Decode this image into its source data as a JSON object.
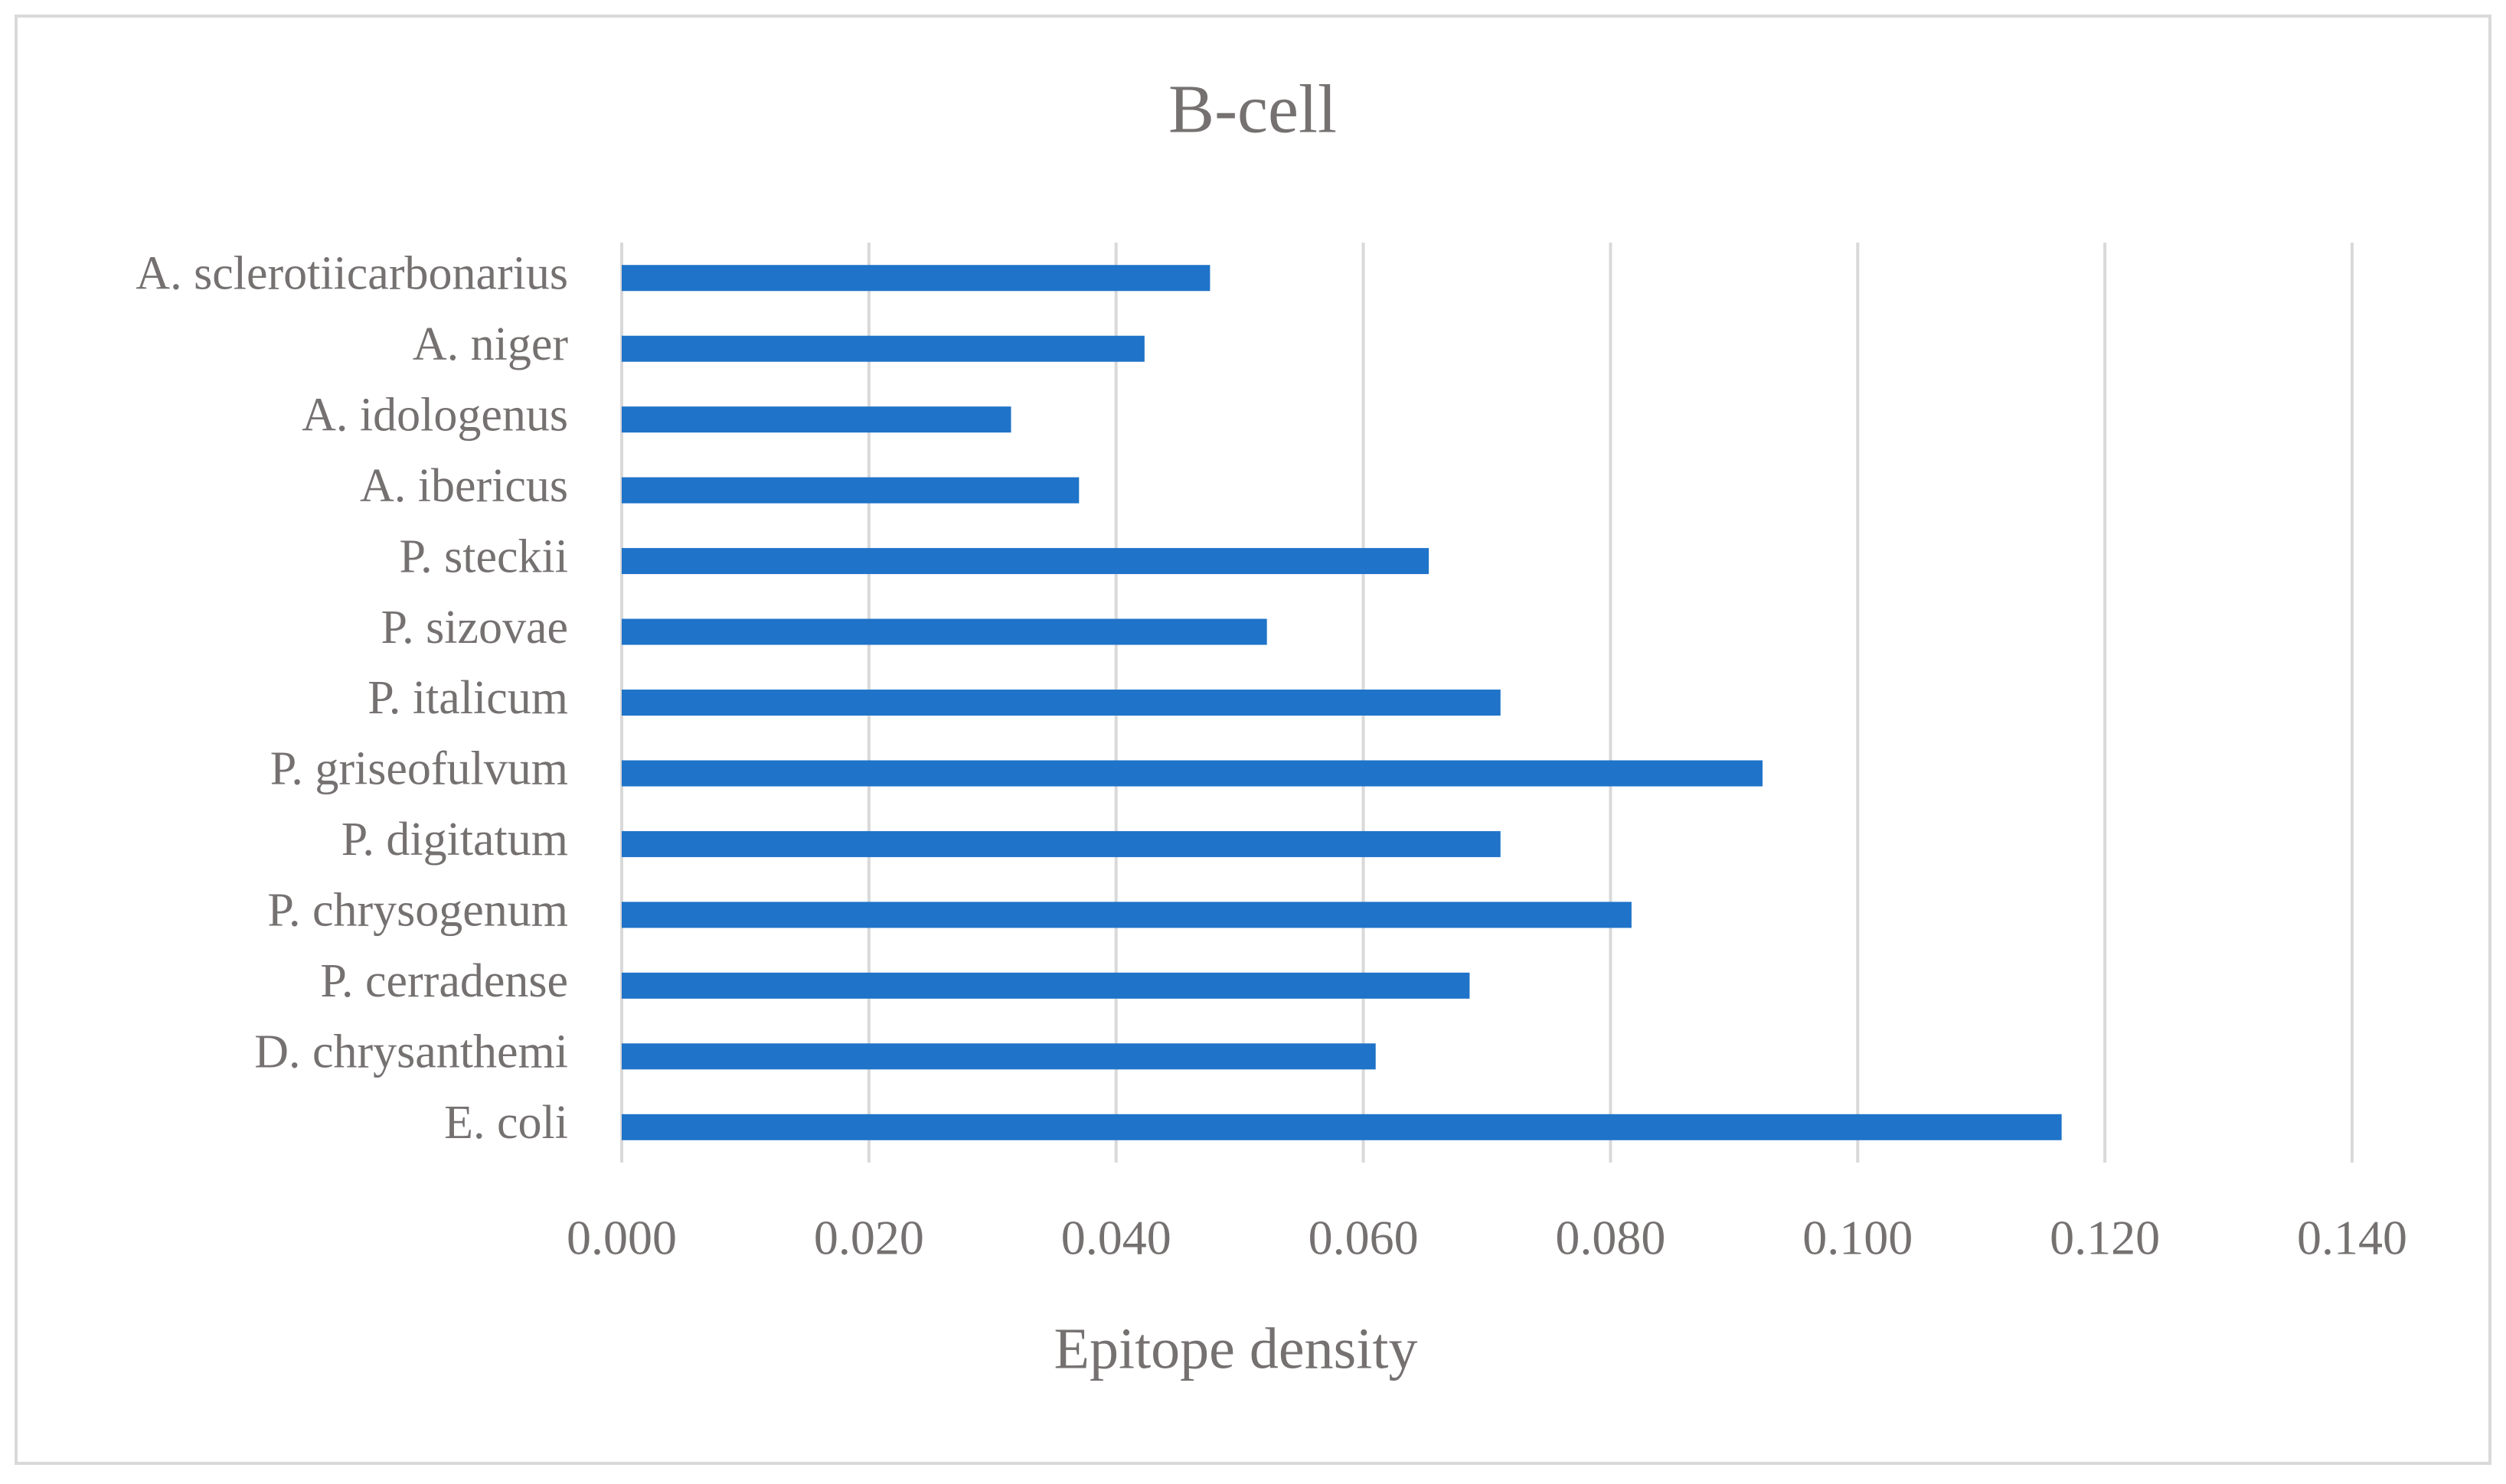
{
  "chart_data": {
    "type": "bar",
    "orientation": "horizontal",
    "title": "B-cell",
    "x_label": "Epitope density",
    "categories": [
      "A. sclerotiicarbonarius",
      "A. niger",
      "A. idologenus",
      "A. ibericus",
      "P. steckii",
      "P. sizovae",
      "P. italicum",
      "P. griseofulvum",
      "P. digitatum",
      "P. chrysogenum",
      "P. cerradense",
      "D. chrysanthemi",
      "E. coli"
    ],
    "values": [
      0.0476,
      0.0423,
      0.0315,
      0.037,
      0.0653,
      0.0522,
      0.0711,
      0.0923,
      0.0711,
      0.0817,
      0.0686,
      0.061,
      0.1165
    ],
    "color": "#1f73c8",
    "xlim": [
      0,
      0.14
    ],
    "xticks": [
      {
        "value": 0,
        "label": "0.000"
      },
      {
        "value": 0.02,
        "label": "0.020"
      },
      {
        "value": 0.04,
        "label": "0.040"
      },
      {
        "value": 0.06,
        "label": "0.060"
      },
      {
        "value": 0.08,
        "label": "0.080"
      },
      {
        "value": 0.1,
        "label": "0.100"
      },
      {
        "value": 0.12,
        "label": "0.120"
      },
      {
        "value": 0.14,
        "label": "0.140"
      }
    ],
    "grid": true
  }
}
